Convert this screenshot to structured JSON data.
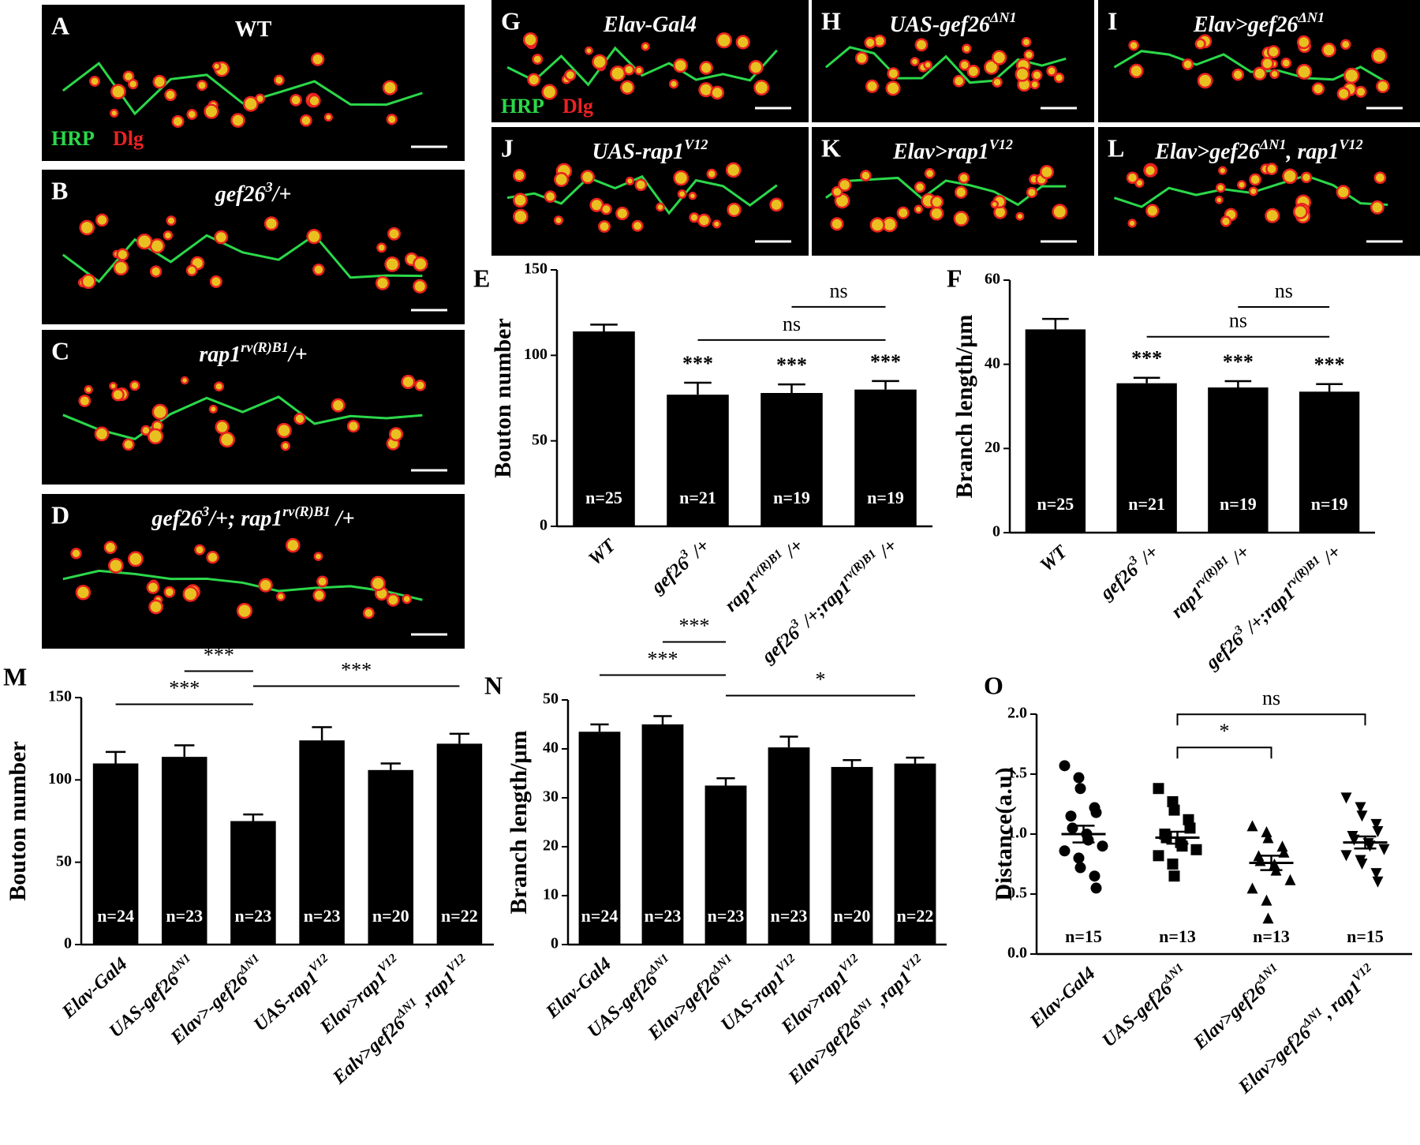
{
  "image_panels": [
    {
      "letter": "A",
      "title": [
        "WT"
      ],
      "channels": [
        {
          "text": "HRP",
          "color": "#2bd84a"
        },
        {
          "text": "Dlg",
          "color": "#ee2222"
        }
      ]
    },
    {
      "letter": "B",
      "title": [
        "gef26",
        "3",
        "/+"
      ]
    },
    {
      "letter": "C",
      "title": [
        "rap1",
        "rv(R)B1",
        "/+"
      ]
    },
    {
      "letter": "D",
      "title": [
        "gef26",
        "3",
        "/+; rap1",
        "rv(R)B1",
        " /+"
      ]
    },
    {
      "letter": "G",
      "title": [
        "Elav-Gal4"
      ],
      "channels": [
        {
          "text": "HRP",
          "color": "#2bd84a"
        },
        {
          "text": "Dlg",
          "color": "#ee2222"
        }
      ]
    },
    {
      "letter": "H",
      "title": [
        "UAS-gef26",
        "ΔN1"
      ]
    },
    {
      "letter": "I",
      "title": [
        "Elav>gef26",
        "ΔN1"
      ]
    },
    {
      "letter": "J",
      "title": [
        "UAS-rap1",
        "V12"
      ]
    },
    {
      "letter": "K",
      "title": [
        "Elav>rap1",
        "V12"
      ]
    },
    {
      "letter": "L",
      "title": [
        "Elav>gef26",
        "ΔN1",
        ", rap1",
        "V12"
      ]
    }
  ],
  "chart_data": [
    {
      "type": "bar",
      "panel": "E",
      "ylabel": "Bouton number",
      "color": "#000000",
      "categories": [
        [
          "WT"
        ],
        [
          "gef26",
          "3",
          " /+"
        ],
        [
          "rap1",
          "rv(R)B1",
          " /+"
        ],
        [
          "gef26",
          "3",
          " /+;rap1",
          "rv(R)B1",
          " /+"
        ]
      ],
      "values": [
        114,
        77,
        78,
        80
      ],
      "errors": [
        4,
        7,
        5,
        5
      ],
      "n_labels": [
        "n=25",
        "n=21",
        "n=19",
        "n=19"
      ],
      "stars": [
        null,
        "***",
        "***",
        "***"
      ],
      "brackets": [
        {
          "from": 1,
          "to": 3,
          "label": "ns"
        },
        {
          "from": 2,
          "to": 3,
          "label": "ns"
        }
      ],
      "ylim": [
        0,
        150
      ],
      "yticks": [
        0,
        50,
        100,
        150
      ]
    },
    {
      "type": "bar",
      "panel": "F",
      "ylabel": "Branch length/μm",
      "color": "#000000",
      "categories": [
        [
          "WT"
        ],
        [
          "gef26",
          "3",
          " /+"
        ],
        [
          "rap1",
          "rv(R)B1",
          " /+"
        ],
        [
          "gef26",
          "3",
          " /+;rap1",
          "rv(R)B1",
          " /+"
        ]
      ],
      "values": [
        48.3,
        35.5,
        34.5,
        33.5
      ],
      "errors": [
        2.5,
        1.3,
        1.5,
        1.8
      ],
      "n_labels": [
        "n=25",
        "n=21",
        "n=19",
        "n=19"
      ],
      "stars": [
        null,
        "***",
        "***",
        "***"
      ],
      "brackets": [
        {
          "from": 1,
          "to": 3,
          "label": "ns"
        },
        {
          "from": 2,
          "to": 3,
          "label": "ns"
        }
      ],
      "ylim": [
        0,
        60
      ],
      "yticks": [
        0,
        20,
        40,
        60
      ]
    },
    {
      "type": "bar",
      "panel": "M",
      "ylabel": "Bouton number",
      "color": "#000000",
      "categories": [
        [
          "Elav-Gal4"
        ],
        [
          "UAS-gef26",
          "ΔN1"
        ],
        [
          "Elav>-gef26",
          "ΔN1"
        ],
        [
          "UAS-rap1",
          "V12"
        ],
        [
          "Elav>rap1",
          "V12"
        ],
        [
          "Ealv>gef26",
          "ΔN1",
          " ,rap1",
          "V12"
        ]
      ],
      "values": [
        110,
        114,
        75,
        124,
        106,
        122
      ],
      "errors": [
        7,
        7,
        4,
        8,
        4,
        6
      ],
      "n_labels": [
        "n=24",
        "n=23",
        "n=23",
        "n=23",
        "n=20",
        "n=22"
      ],
      "brackets": [
        {
          "from": 0,
          "to": 2,
          "label": "***"
        },
        {
          "from": 1,
          "to": 2,
          "label": "***"
        },
        {
          "from": 2,
          "to": 5,
          "label": "***"
        }
      ],
      "ylim": [
        0,
        150
      ],
      "yticks": [
        0,
        50,
        100,
        150
      ]
    },
    {
      "type": "bar",
      "panel": "N",
      "ylabel": "Branch length/μm",
      "color": "#000000",
      "categories": [
        [
          "Elav-Gal4"
        ],
        [
          "UAS-gef26",
          "ΔN1"
        ],
        [
          "Elav>gef26",
          "ΔN1"
        ],
        [
          "UAS-rap1",
          "V12"
        ],
        [
          "Elav>rap1",
          "V12"
        ],
        [
          "Elav>gef26",
          "ΔN1",
          " ,rap1",
          "V12"
        ]
      ],
      "values": [
        43.5,
        45,
        32.5,
        40.3,
        36.3,
        37
      ],
      "errors": [
        1.5,
        1.7,
        1.5,
        2.2,
        1.4,
        1.2
      ],
      "n_labels": [
        "n=24",
        "n=23",
        "n=23",
        "n=23",
        "n=20",
        "n=22"
      ],
      "brackets": [
        {
          "from": 0,
          "to": 2,
          "label": "***"
        },
        {
          "from": 1,
          "to": 2,
          "label": "***"
        },
        {
          "from": 2,
          "to": 5,
          "label": "*"
        }
      ],
      "ylim": [
        0,
        50
      ],
      "yticks": [
        0,
        10,
        20,
        30,
        40,
        50
      ]
    },
    {
      "type": "strip",
      "panel": "O",
      "ylabel": "Distance(a.u)",
      "color": "#000000",
      "categories": [
        [
          "Elav-Gal4"
        ],
        [
          "UAS-gef26",
          "ΔN1"
        ],
        [
          "Elav>gef26",
          "ΔN1"
        ],
        [
          "Elav>gef26",
          "ΔN1",
          ", rap1",
          "V12"
        ]
      ],
      "markers": [
        "circle",
        "square",
        "triangle-up",
        "triangle-down"
      ],
      "points": [
        [
          1.57,
          1.47,
          1.38,
          1.22,
          1.18,
          1.15,
          1.05,
          1.0,
          0.95,
          0.9,
          0.86,
          0.8,
          0.72,
          0.65,
          0.55
        ],
        [
          1.38,
          1.27,
          1.2,
          1.12,
          1.05,
          1.0,
          0.97,
          0.93,
          0.9,
          0.87,
          0.82,
          0.75,
          0.65
        ],
        [
          1.07,
          1.02,
          0.97,
          0.9,
          0.85,
          0.82,
          0.78,
          0.75,
          0.7,
          0.62,
          0.55,
          0.45,
          0.3
        ],
        [
          1.3,
          1.22,
          1.15,
          1.08,
          1.02,
          0.98,
          0.95,
          0.92,
          0.9,
          0.87,
          0.82,
          0.78,
          0.75,
          0.67,
          0.6
        ]
      ],
      "means": [
        1.0,
        0.97,
        0.76,
        0.93
      ],
      "errors": [
        0.07,
        0.05,
        0.06,
        0.05
      ],
      "n_labels": [
        "n=15",
        "n=13",
        "n=13",
        "n=15"
      ],
      "brackets": [
        {
          "from": 1,
          "to": 2,
          "label": "*"
        },
        {
          "from": 1,
          "to": 3,
          "label": "ns"
        }
      ],
      "ylim": [
        0,
        2
      ],
      "yticks": [
        {
          "value": 0,
          "label": "0.0"
        },
        {
          "value": 0.5,
          "label": "0.5"
        },
        {
          "value": 1,
          "label": "1.0"
        },
        {
          "value": 1.5,
          "label": "1.5"
        },
        {
          "value": 2,
          "label": "2.0"
        }
      ]
    }
  ]
}
